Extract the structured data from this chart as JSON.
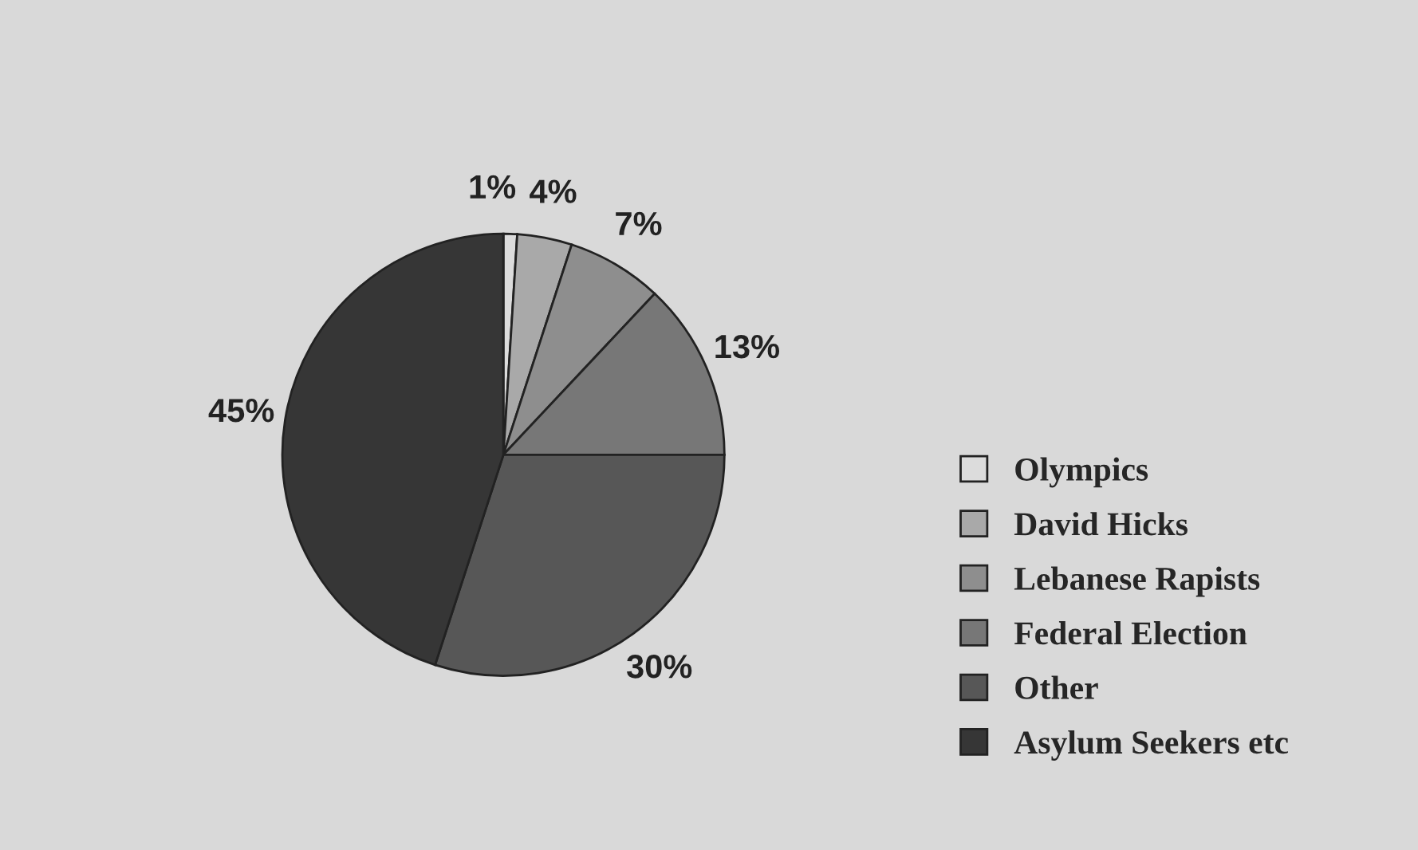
{
  "chart_data": {
    "type": "pie",
    "categories": [
      "Olympics",
      "David Hicks",
      "Lebanese Rapists",
      "Federal Election",
      "Other",
      "Asylum Seekers etc"
    ],
    "values": [
      1,
      4,
      7,
      13,
      30,
      45
    ],
    "colors": [
      "#dcdcdc",
      "#a9a9a9",
      "#8e8e8e",
      "#777777",
      "#575757",
      "#363636"
    ],
    "value_labels": [
      "1%",
      "4%",
      "7%",
      "13%",
      "30%",
      "45%"
    ],
    "legend": "bottom right"
  }
}
